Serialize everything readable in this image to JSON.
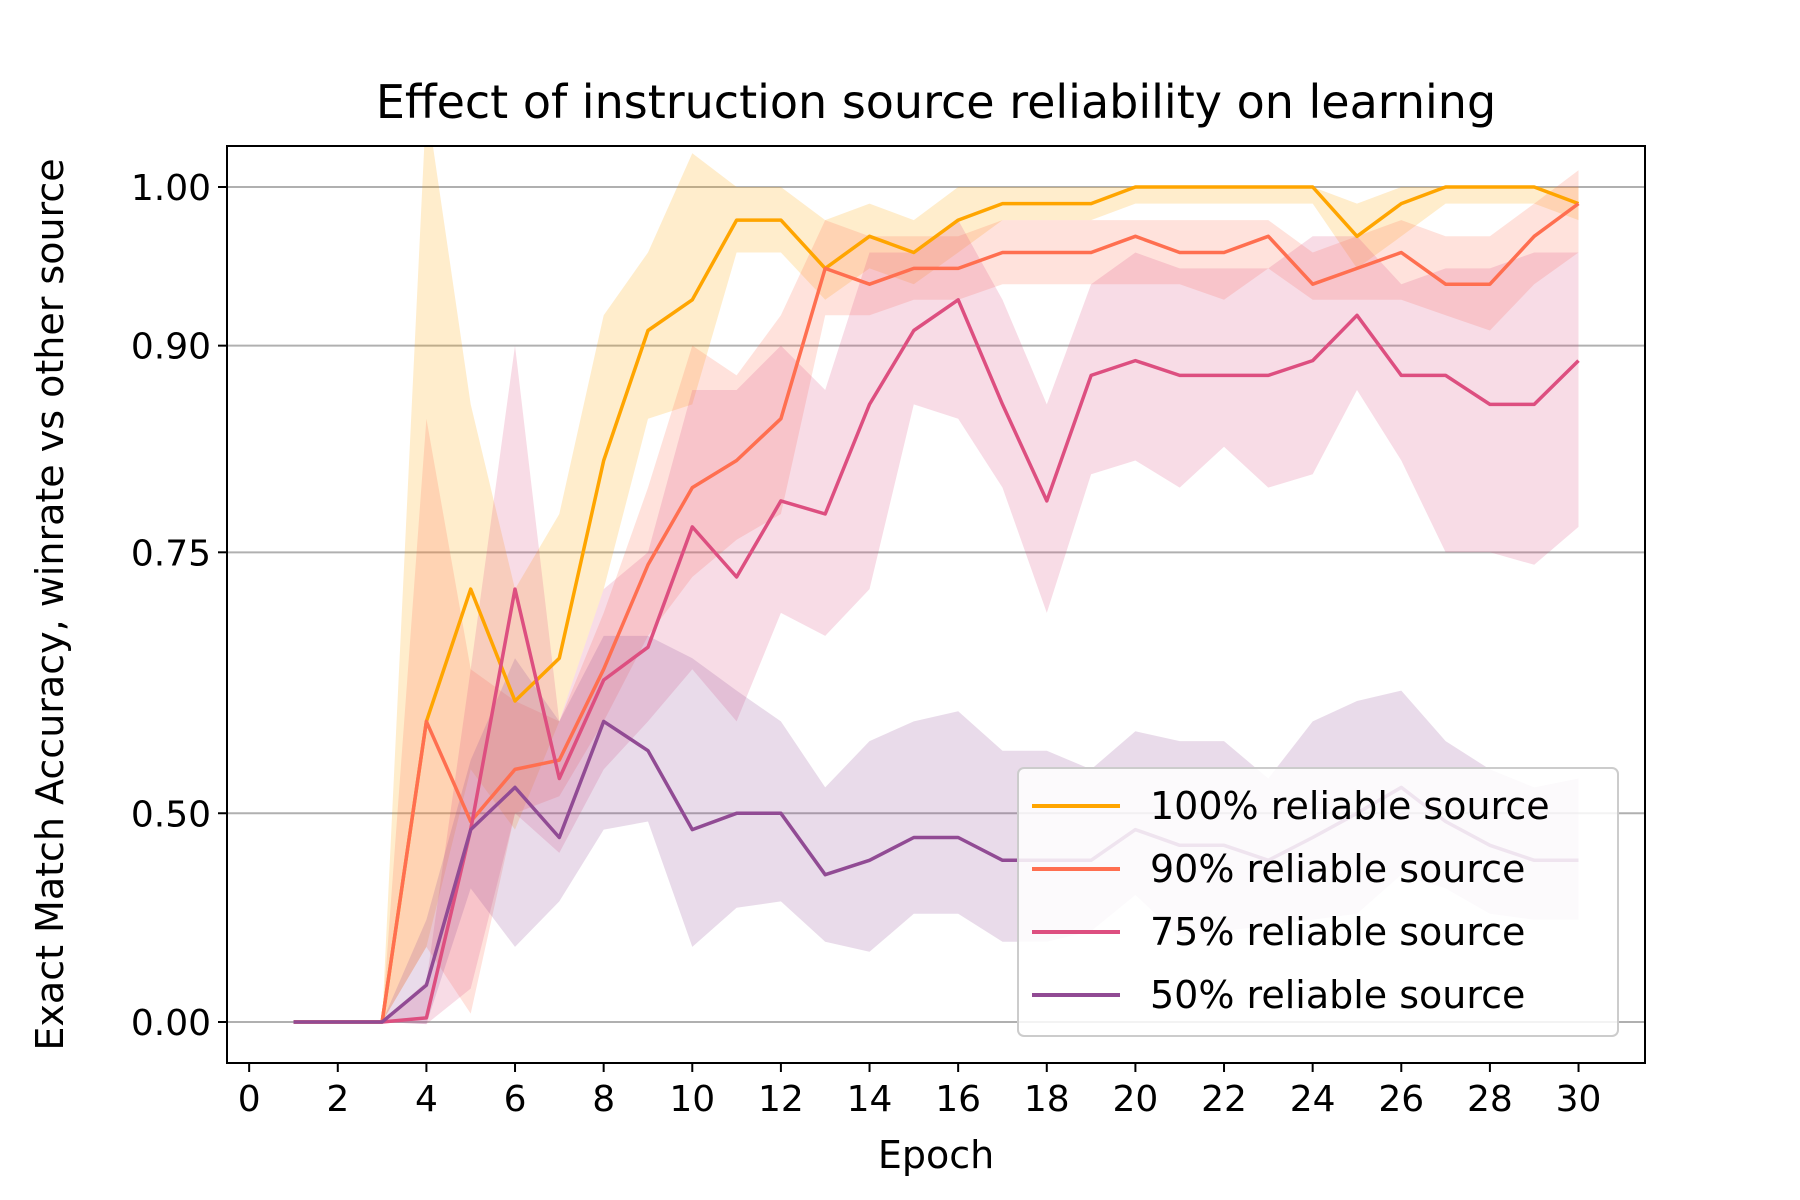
{
  "chart_data": {
    "type": "line",
    "title": "Effect of instruction source reliability on learning",
    "xlabel": "Epoch",
    "ylabel": "Exact Match Accuracy, winrate vs other source",
    "xlim": [
      -0.5,
      31.5
    ],
    "ylim": [
      -0.05,
      1.05
    ],
    "y_scale": "nonlinear (square-like spacing)",
    "x_ticks": [
      0,
      2,
      4,
      6,
      8,
      10,
      12,
      14,
      16,
      18,
      20,
      22,
      24,
      26,
      28,
      30
    ],
    "y_ticks": [
      0.0,
      0.5,
      0.75,
      0.9,
      1.0
    ],
    "y_tick_labels": [
      "0.00",
      "0.50",
      "0.75",
      "0.90",
      "1.00"
    ],
    "grid": "horizontal at y ticks",
    "legend_position": "lower-right",
    "x": [
      1,
      2,
      3,
      4,
      5,
      6,
      7,
      8,
      9,
      10,
      11,
      12,
      13,
      14,
      15,
      16,
      17,
      18,
      19,
      20,
      21,
      22,
      23,
      24,
      25,
      26,
      27,
      28,
      29,
      30
    ],
    "series": [
      {
        "name": "100% reliable source",
        "color": "#FFA500",
        "values": [
          0,
          0,
          0,
          0.6,
          0.72,
          0.62,
          0.66,
          0.82,
          0.91,
          0.93,
          0.98,
          0.98,
          0.95,
          0.97,
          0.96,
          0.98,
          0.99,
          0.99,
          0.99,
          1.0,
          1.0,
          1.0,
          1.0,
          1.0,
          0.97,
          0.99,
          1.0,
          1.0,
          1.0,
          0.99
        ],
        "lower": [
          0,
          0,
          0,
          0.3,
          0.55,
          0.48,
          0.6,
          0.72,
          0.85,
          0.86,
          0.96,
          0.96,
          0.93,
          0.95,
          0.94,
          0.96,
          0.98,
          0.98,
          0.98,
          0.99,
          0.99,
          0.99,
          0.99,
          0.99,
          0.95,
          0.97,
          0.99,
          0.99,
          0.99,
          0.98
        ],
        "upper": [
          0,
          0,
          0,
          1.05,
          0.86,
          0.72,
          0.78,
          0.92,
          0.96,
          1.02,
          1.0,
          1.0,
          0.98,
          0.99,
          0.98,
          1.0,
          1.0,
          1.0,
          1.0,
          1.0,
          1.0,
          1.0,
          1.0,
          1.0,
          0.99,
          1.0,
          1.0,
          1.0,
          1.0,
          1.0
        ]
      },
      {
        "name": "90% reliable source",
        "color": "#FF6F50",
        "values": [
          0,
          0,
          0,
          0.6,
          0.49,
          0.55,
          0.56,
          0.65,
          0.74,
          0.8,
          0.82,
          0.85,
          0.95,
          0.94,
          0.95,
          0.95,
          0.96,
          0.96,
          0.96,
          0.97,
          0.96,
          0.96,
          0.97,
          0.94,
          0.95,
          0.96,
          0.94,
          0.94,
          0.97,
          0.99
        ],
        "lower": [
          0,
          0,
          0,
          0.3,
          0.1,
          0.5,
          0.52,
          0.6,
          0.68,
          0.73,
          0.76,
          0.78,
          0.92,
          0.92,
          0.93,
          0.93,
          0.94,
          0.94,
          0.94,
          0.94,
          0.94,
          0.93,
          0.95,
          0.93,
          0.93,
          0.93,
          0.92,
          0.91,
          0.94,
          0.96
        ],
        "upper": [
          0,
          0,
          0,
          0.85,
          0.65,
          0.62,
          0.6,
          0.7,
          0.8,
          0.9,
          0.88,
          0.92,
          0.98,
          0.97,
          0.97,
          0.97,
          0.98,
          0.98,
          0.98,
          0.98,
          0.98,
          0.98,
          0.98,
          0.96,
          0.97,
          0.98,
          0.97,
          0.97,
          0.99,
          1.01
        ]
      },
      {
        "name": "75% reliable source",
        "color": "#DD4F80",
        "values": [
          0,
          0,
          0,
          0.07,
          0.48,
          0.72,
          0.54,
          0.64,
          0.67,
          0.77,
          0.73,
          0.79,
          0.78,
          0.86,
          0.91,
          0.93,
          0.86,
          0.79,
          0.88,
          0.89,
          0.88,
          0.88,
          0.88,
          0.89,
          0.92,
          0.88,
          0.88,
          0.86,
          0.86,
          0.89
        ],
        "lower": [
          0,
          0,
          0,
          -0.05,
          0.2,
          0.5,
          0.45,
          0.55,
          0.6,
          0.65,
          0.6,
          0.7,
          0.68,
          0.72,
          0.86,
          0.85,
          0.8,
          0.7,
          0.81,
          0.82,
          0.8,
          0.83,
          0.8,
          0.81,
          0.87,
          0.82,
          0.75,
          0.75,
          0.74,
          0.77
        ],
        "upper": [
          0,
          0,
          0,
          0.22,
          0.65,
          0.9,
          0.6,
          0.72,
          0.75,
          0.87,
          0.87,
          0.9,
          0.87,
          0.96,
          0.96,
          0.98,
          0.93,
          0.86,
          0.94,
          0.96,
          0.95,
          0.95,
          0.95,
          0.97,
          0.97,
          0.94,
          0.95,
          0.95,
          0.96,
          0.96
        ]
      },
      {
        "name": "50% reliable source",
        "color": "#914B94",
        "values": [
          0,
          0,
          0,
          0.21,
          0.48,
          0.53,
          0.47,
          0.6,
          0.57,
          0.48,
          0.5,
          0.5,
          0.42,
          0.44,
          0.47,
          0.47,
          0.44,
          0.44,
          0.44,
          0.48,
          0.46,
          0.46,
          0.44,
          0.47,
          0.5,
          0.53,
          0.49,
          0.46,
          0.44,
          0.44
        ],
        "lower": [
          0,
          0,
          0,
          -0.05,
          0.4,
          0.3,
          0.38,
          0.48,
          0.49,
          0.3,
          0.37,
          0.38,
          0.31,
          0.29,
          0.36,
          0.36,
          0.31,
          0.31,
          0.33,
          0.39,
          0.32,
          0.33,
          0.34,
          0.35,
          0.36,
          0.42,
          0.4,
          0.36,
          0.35,
          0.35
        ],
        "upper": [
          0,
          0,
          0,
          0.35,
          0.56,
          0.66,
          0.6,
          0.68,
          0.68,
          0.66,
          0.63,
          0.6,
          0.53,
          0.58,
          0.6,
          0.61,
          0.57,
          0.57,
          0.55,
          0.59,
          0.58,
          0.58,
          0.54,
          0.6,
          0.62,
          0.63,
          0.58,
          0.55,
          0.53,
          0.54
        ]
      }
    ]
  }
}
